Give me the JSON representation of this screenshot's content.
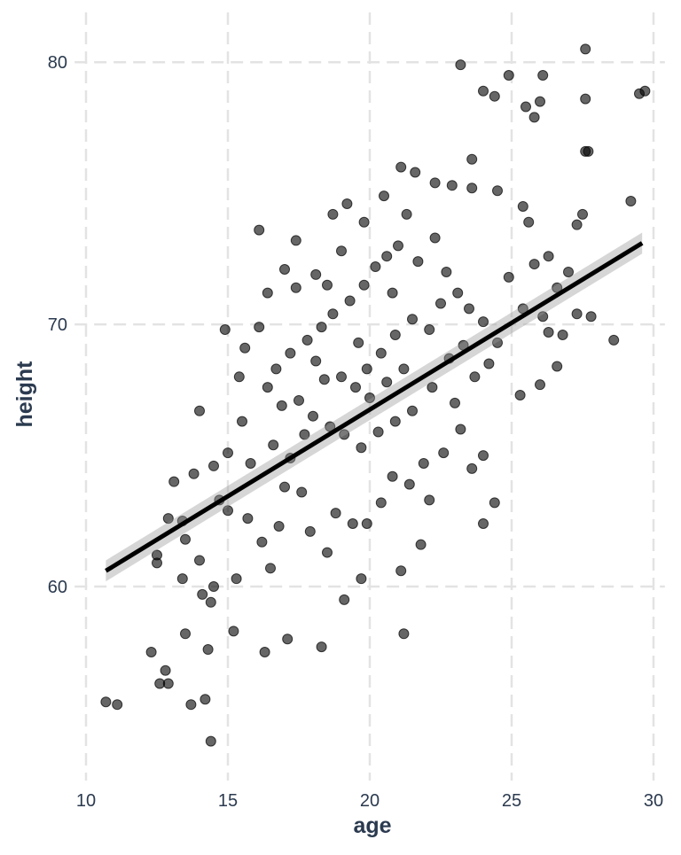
{
  "chart_data": {
    "type": "scatter",
    "x_label": "age",
    "y_label": "height",
    "x": [
      10.7,
      11.1,
      14.4,
      13.7,
      14.2,
      12.6,
      12.8,
      12.9,
      12.3,
      13.5,
      14.3,
      15.2,
      14.1,
      14.4,
      14.5,
      13.4,
      14.0,
      12.5,
      12.5,
      12.9,
      13.4,
      13.5,
      13.1,
      13.8,
      14.0,
      14.9,
      16.1,
      17.4,
      17.0,
      18.7,
      23.2,
      24.9,
      26.1,
      27.6,
      27.6,
      29.5,
      29.7,
      25.8,
      25.5,
      26.0,
      24.0,
      24.4,
      23.6,
      27.6,
      27.7,
      29.2,
      27.3,
      27.5,
      28.6,
      27.8,
      27.3,
      21.2,
      18.3,
      17.1,
      16.3,
      15.3,
      16.5,
      19.1,
      19.7,
      21.1,
      21.8,
      22.1,
      24.0,
      24.4,
      23.6,
      24.0,
      25.3,
      26.0,
      26.6,
      26.1,
      25.4,
      26.3,
      26.8,
      26.3,
      27.0,
      25.6,
      25.4,
      24.5,
      23.6,
      22.9,
      22.3,
      21.6,
      21.1,
      20.5,
      19.8,
      19.2,
      18.1,
      18.5,
      17.4,
      16.4,
      16.1,
      15.6,
      15.4,
      15.5,
      15.8,
      15.0,
      14.5,
      14.7,
      15.0,
      15.7,
      16.2,
      16.8,
      17.0,
      17.6,
      17.9,
      18.5,
      18.8,
      19.4,
      19.9,
      20.4,
      20.8,
      21.4,
      21.9,
      22.6,
      23.2,
      23.0,
      22.2,
      21.5,
      20.9,
      20.3,
      19.7,
      19.1,
      18.6,
      18.0,
      17.5,
      16.9,
      16.4,
      16.7,
      17.2,
      17.8,
      18.3,
      18.7,
      19.3,
      19.8,
      20.2,
      20.6,
      21.0,
      21.7,
      22.3,
      22.7,
      23.1,
      23.5,
      24.0,
      24.5,
      24.2,
      23.7,
      23.3,
      22.8,
      22.1,
      21.5,
      20.9,
      20.4,
      19.9,
      19.5,
      19.0,
      18.4,
      18.1,
      17.7,
      17.2,
      16.6,
      20.0,
      20.6,
      21.2,
      19.6,
      22.5,
      20.8,
      19.0,
      21.3,
      24.9,
      25.8,
      26.6
    ],
    "values": [
      55.6,
      55.5,
      54.1,
      55.5,
      55.7,
      56.3,
      56.8,
      56.3,
      57.5,
      58.2,
      57.6,
      58.3,
      59.7,
      59.4,
      60.0,
      60.3,
      61.0,
      60.9,
      61.2,
      62.6,
      62.5,
      61.8,
      64.0,
      64.3,
      66.7,
      69.8,
      73.6,
      73.2,
      72.1,
      74.2,
      79.9,
      79.5,
      79.5,
      80.5,
      78.6,
      78.8,
      78.9,
      77.9,
      78.3,
      78.5,
      78.9,
      78.7,
      76.3,
      76.6,
      76.6,
      74.7,
      73.8,
      74.2,
      69.4,
      70.3,
      70.4,
      58.2,
      57.7,
      58.0,
      57.5,
      60.3,
      60.7,
      59.5,
      60.3,
      60.6,
      61.6,
      63.3,
      62.4,
      63.2,
      64.5,
      65.0,
      67.3,
      67.7,
      68.4,
      70.3,
      70.6,
      69.7,
      69.6,
      72.6,
      72.0,
      73.9,
      74.5,
      75.1,
      75.2,
      75.3,
      75.4,
      75.8,
      76.0,
      74.9,
      73.9,
      74.6,
      71.9,
      71.5,
      71.4,
      71.2,
      69.9,
      69.1,
      68.0,
      66.3,
      64.7,
      65.1,
      64.6,
      63.3,
      62.9,
      62.6,
      61.7,
      62.3,
      63.8,
      63.6,
      62.1,
      61.3,
      62.8,
      62.4,
      62.4,
      63.2,
      64.2,
      63.9,
      64.7,
      65.1,
      66.0,
      67.0,
      67.6,
      66.7,
      66.3,
      65.9,
      65.3,
      65.8,
      66.1,
      66.5,
      67.1,
      66.9,
      67.6,
      68.3,
      68.9,
      69.4,
      69.9,
      70.4,
      70.9,
      71.5,
      72.2,
      72.6,
      73.0,
      72.4,
      73.3,
      72.0,
      71.2,
      70.6,
      70.1,
      69.3,
      68.5,
      68.0,
      69.2,
      68.7,
      69.8,
      70.2,
      69.6,
      68.9,
      68.3,
      67.6,
      68.0,
      67.9,
      68.6,
      65.8,
      64.9,
      65.4,
      67.2,
      67.8,
      68.3,
      69.3,
      70.8,
      71.2,
      72.8,
      74.2,
      71.8,
      72.3,
      71.4
    ],
    "color": "#000000",
    "fit": {
      "x": [
        10.7,
        29.6
      ],
      "y": [
        60.6,
        73.1
      ],
      "ci_low": [
        60.2,
        72.7
      ],
      "ci_high": [
        61.0,
        73.5
      ],
      "color": "#000000"
    },
    "xlim": [
      9.6,
      30.4
    ],
    "ylim": [
      52.6,
      81.9
    ],
    "xticks": [
      10,
      15,
      20,
      25,
      30
    ],
    "yticks": [
      60,
      70,
      80
    ],
    "grid": true
  }
}
